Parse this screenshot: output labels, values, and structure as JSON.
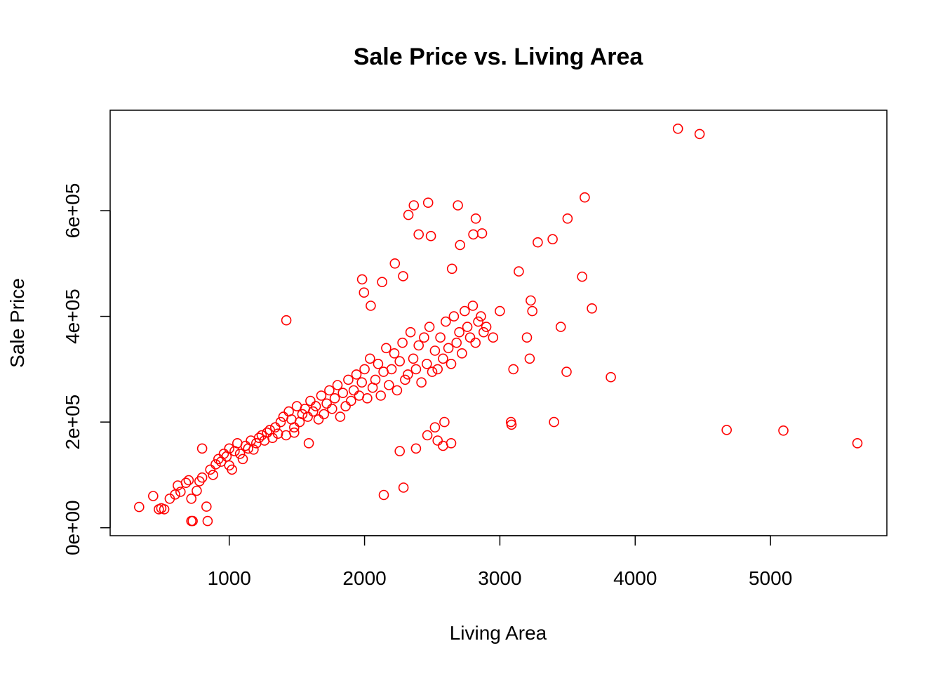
{
  "chart_data": {
    "type": "scatter",
    "title": "Sale Price vs. Living Area",
    "xlabel": "Living Area",
    "ylabel": "Sale Price",
    "xlim": [
      120,
      5860
    ],
    "ylim": [
      -15000,
      790000
    ],
    "xticks": [
      {
        "value": 1000,
        "label": "1000"
      },
      {
        "value": 2000,
        "label": "2000"
      },
      {
        "value": 3000,
        "label": "3000"
      },
      {
        "value": 4000,
        "label": "4000"
      },
      {
        "value": 5000,
        "label": "5000"
      }
    ],
    "yticks": [
      {
        "value": 0,
        "label": "0e+00"
      },
      {
        "value": 200000,
        "label": "2e+05"
      },
      {
        "value": 400000,
        "label": "4e+05"
      },
      {
        "value": 600000,
        "label": "6e+05"
      }
    ],
    "marker": "open-circle",
    "color": "#ff0000",
    "grid": false,
    "legend": "none",
    "series": [
      {
        "x": [
          334,
          438,
          480,
          498,
          520,
          560,
          600,
          620,
          640,
          680,
          700,
          720,
          720,
          760,
          780,
          800,
          800,
          840,
          860,
          880,
          900,
          920,
          940,
          960,
          980,
          1000,
          1000,
          1020,
          1040,
          1060,
          1080,
          1100,
          1120,
          1140,
          1160,
          1180,
          1200,
          1220,
          1240,
          1260,
          1280,
          1300,
          1320,
          1340,
          1360,
          1380,
          1400,
          1420,
          1440,
          1460,
          1480,
          1500,
          1520,
          1540,
          1560,
          1580,
          1600,
          1620,
          1640,
          1660,
          1680,
          1700,
          1720,
          1740,
          1760,
          1780,
          1800,
          1820,
          1840,
          1860,
          1880,
          1900,
          1920,
          1940,
          1960,
          1980,
          2000,
          2020,
          2040,
          2060,
          2080,
          2100,
          2120,
          2140,
          2160,
          2180,
          2200,
          2220,
          2240,
          2260,
          2280,
          2300,
          2320,
          2340,
          2360,
          2380,
          2400,
          2420,
          2440,
          2460,
          2480,
          2500,
          2520,
          2540,
          2560,
          2580,
          2600,
          2620,
          2640,
          2660,
          2680,
          2700,
          2720,
          2740,
          2760,
          2780,
          2800,
          2820,
          2840,
          2860,
          2880,
          2900,
          2950,
          3000,
          3082,
          3086,
          3100,
          3140,
          3200,
          3220,
          3228,
          3240,
          3280,
          3390,
          3400,
          3450,
          3493,
          3500,
          3608,
          3627,
          3680,
          3820,
          4316,
          4476,
          4676,
          5095,
          5642,
          1422,
          2646,
          2324,
          2364,
          2470,
          2690,
          2822,
          2868,
          2400,
          2490,
          2706,
          2804,
          2224,
          2285,
          2046,
          1982,
          1996,
          2130,
          1588,
          1480,
          832,
          730,
          2142,
          2288,
          2260,
          2380,
          2580,
          2640,
          2540,
          2464,
          2520,
          2590
        ],
        "y": [
          39300,
          60000,
          35000,
          37000,
          34900,
          55000,
          63000,
          80000,
          68000,
          85000,
          90000,
          12789,
          55000,
          70000,
          88000,
          95000,
          150000,
          12789,
          110000,
          100000,
          120000,
          130000,
          125000,
          140000,
          135000,
          118000,
          150000,
          110000,
          145000,
          160000,
          140000,
          130000,
          155000,
          150000,
          165000,
          148000,
          160000,
          170000,
          175000,
          165000,
          180000,
          185000,
          170000,
          190000,
          178000,
          200000,
          210000,
          175000,
          220000,
          205000,
          190000,
          230000,
          200000,
          215000,
          225000,
          210000,
          240000,
          220000,
          230000,
          205000,
          250000,
          215000,
          235000,
          260000,
          225000,
          245000,
          270000,
          210000,
          255000,
          230000,
          280000,
          240000,
          260000,
          290000,
          250000,
          275000,
          300000,
          245000,
          320000,
          265000,
          280000,
          310000,
          250000,
          295000,
          340000,
          270000,
          300000,
          330000,
          260000,
          315000,
          350000,
          280000,
          290000,
          370000,
          320000,
          300000,
          345000,
          275000,
          360000,
          310000,
          380000,
          295000,
          335000,
          300000,
          360000,
          320000,
          390000,
          340000,
          310000,
          400000,
          350000,
          370000,
          330000,
          410000,
          380000,
          360000,
          420000,
          350000,
          390000,
          400000,
          370000,
          380000,
          360000,
          410000,
          200000,
          195000,
          300000,
          485000,
          360000,
          320000,
          430000,
          410000,
          540000,
          546000,
          200000,
          380000,
          295000,
          585000,
          475000,
          625000,
          415000,
          285000,
          755000,
          745000,
          185000,
          183850,
          160000,
          392500,
          490000,
          592000,
          610000,
          615000,
          610000,
          585000,
          557000,
          555000,
          552000,
          535000,
          555000,
          500000,
          476000,
          420000,
          470000,
          445000,
          465000,
          160000,
          180000,
          40000,
          12789,
          62000,
          76000,
          145000,
          150000,
          155000,
          160000,
          165000,
          175000,
          190000,
          200000
        ]
      }
    ]
  }
}
